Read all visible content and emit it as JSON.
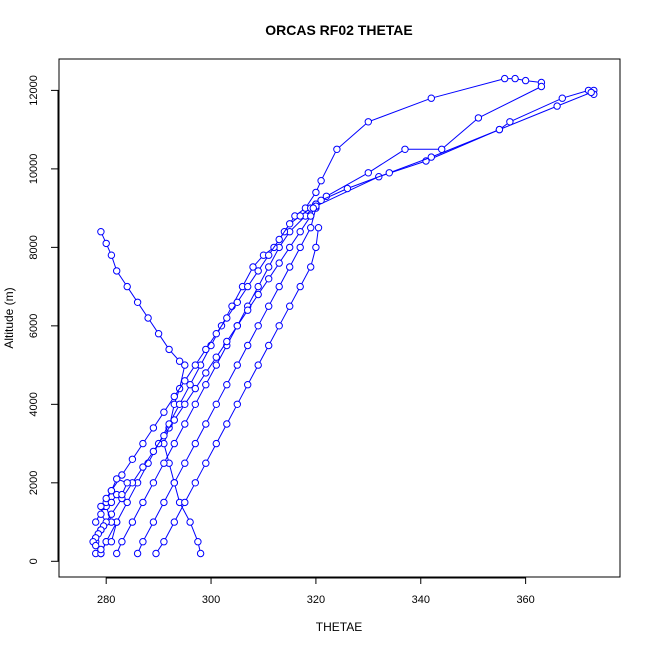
{
  "chart_data": {
    "type": "line",
    "title": "ORCAS RF02 THETAE",
    "xlabel": "THETAE",
    "ylabel": "Altitude (m)",
    "xlim": [
      271,
      378
    ],
    "ylim": [
      -400,
      12800
    ],
    "xticks": [
      280,
      300,
      320,
      340,
      360
    ],
    "yticks": [
      0,
      2000,
      4000,
      6000,
      8000,
      10000,
      12000
    ],
    "grid": false,
    "markers": "open-circle",
    "color": "#0000ff",
    "series": [
      {
        "x": [
          298,
          297.5,
          296,
          294,
          293,
          292,
          291,
          292,
          293,
          294,
          295,
          294,
          292,
          290,
          288,
          286,
          284,
          282,
          281,
          280,
          279
        ],
        "y": [
          200,
          500,
          1000,
          1500,
          2000,
          2500,
          3000,
          3400,
          4000,
          4400,
          5000,
          5100,
          5400,
          5800,
          6200,
          6600,
          7000,
          7400,
          7800,
          8100,
          8400
        ]
      },
      {
        "x": [
          289.5,
          291,
          293,
          295,
          297,
          299,
          301,
          303,
          305,
          307,
          309,
          311,
          313,
          315,
          317,
          319,
          320,
          320.5
        ],
        "y": [
          200,
          500,
          1000,
          1500,
          2000,
          2500,
          3000,
          3500,
          4000,
          4500,
          5000,
          5500,
          6000,
          6500,
          7000,
          7500,
          8000,
          8500
        ]
      },
      {
        "x": [
          286,
          287,
          289,
          291,
          293,
          295,
          297,
          299,
          301,
          303,
          305,
          307,
          309,
          311,
          313,
          315,
          317,
          319,
          320
        ],
        "y": [
          200,
          500,
          1000,
          1500,
          2000,
          2500,
          3000,
          3500,
          4000,
          4500,
          5000,
          5500,
          6000,
          6500,
          7000,
          7500,
          8000,
          8500,
          9000
        ]
      },
      {
        "x": [
          282,
          283,
          285,
          287,
          289,
          291,
          293,
          295,
          297,
          299,
          301,
          303,
          305,
          307,
          309,
          311,
          313,
          315,
          318,
          320
        ],
        "y": [
          200,
          500,
          1000,
          1500,
          2000,
          2500,
          3000,
          3500,
          4000,
          4500,
          5000,
          5500,
          6000,
          6500,
          7000,
          7500,
          8000,
          8400,
          8800,
          9100
        ]
      },
      {
        "x": [
          279,
          280,
          282,
          284,
          286,
          288,
          290,
          292,
          294,
          296,
          298,
          300,
          302,
          304,
          306,
          308,
          310,
          312,
          314,
          316,
          318,
          320,
          321,
          324,
          330,
          342,
          356,
          358,
          360,
          363
        ],
        "y": [
          200,
          500,
          1000,
          1500,
          2000,
          2500,
          3000,
          3500,
          4000,
          4500,
          5000,
          5500,
          6000,
          6500,
          7000,
          7500,
          7800,
          8000,
          8400,
          8800,
          9000,
          9400,
          9700,
          10500,
          11200,
          11800,
          12300,
          12300,
          12250,
          12200
        ]
      },
      {
        "x": [
          278,
          279,
          281,
          283,
          285,
          287,
          289,
          291,
          293,
          295,
          297,
          299,
          301,
          303,
          305,
          307,
          309,
          311,
          313,
          315,
          317,
          319,
          320,
          322,
          330,
          337,
          344,
          351,
          363
        ],
        "y": [
          500,
          800,
          1200,
          1600,
          2000,
          2400,
          2800,
          3200,
          3600,
          4000,
          4400,
          4800,
          5200,
          5600,
          6000,
          6400,
          6800,
          7200,
          7600,
          8000,
          8400,
          8800,
          9100,
          9300,
          9900,
          10500,
          10500,
          11300,
          12100
        ]
      },
      {
        "x": [
          278,
          279.5,
          281,
          283,
          285,
          287,
          289,
          291,
          293,
          295,
          297,
          299,
          301,
          303,
          305,
          307,
          309,
          311,
          313,
          315,
          317,
          319,
          320,
          332,
          341,
          355,
          357,
          367,
          372,
          373
        ],
        "y": [
          1000,
          1400,
          1800,
          2200,
          2600,
          3000,
          3400,
          3800,
          4200,
          4600,
          5000,
          5400,
          5800,
          6200,
          6600,
          7000,
          7400,
          7800,
          8200,
          8600,
          8800,
          9000,
          9050,
          9800,
          10200,
          11000,
          11200,
          11800,
          12000,
          12000
        ]
      },
      {
        "x": [
          278,
          279,
          280,
          281,
          282,
          281,
          280,
          279,
          280,
          281,
          282,
          283,
          284,
          282,
          281,
          280,
          279,
          280,
          279.5,
          279,
          278.5,
          278,
          277.5,
          278,
          279
        ],
        "y": [
          200,
          200,
          500,
          500,
          1000,
          1000,
          1400,
          1400,
          1500,
          1500,
          1700,
          1700,
          2000,
          2100,
          1800,
          1600,
          1200,
          1000,
          900,
          800,
          700,
          600,
          500,
          400,
          300
        ]
      },
      {
        "x": [
          373,
          372.5,
          366,
          355,
          342,
          334,
          326,
          321,
          320,
          320,
          319.5
        ],
        "y": [
          11900,
          11950,
          11600,
          11000,
          10300,
          9900,
          9500,
          9200,
          9100,
          9050,
          9000
        ]
      }
    ]
  }
}
